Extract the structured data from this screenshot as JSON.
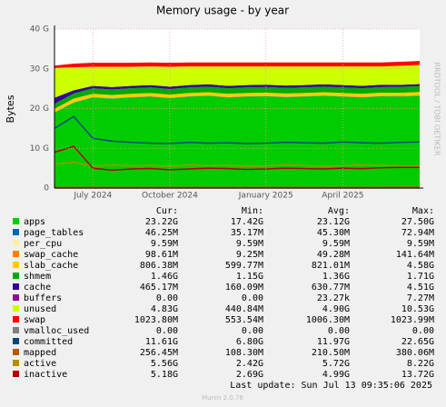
{
  "chart_data": {
    "type": "area",
    "title": "Memory usage - by year",
    "y_label": "Bytes",
    "categories": [
      null,
      null,
      "July 2024",
      null,
      null,
      null,
      "October 2024",
      null,
      null,
      null,
      null,
      "January 2025",
      null,
      null,
      null,
      "April 2025",
      null,
      null,
      null,
      null
    ],
    "ylim": [
      0,
      40
    ],
    "yticks": [
      {
        "value": 0,
        "label": "0"
      },
      {
        "value": 10,
        "label": "10 G"
      },
      {
        "value": 20,
        "label": "20 G"
      },
      {
        "value": 30,
        "label": "30 G"
      },
      {
        "value": 40,
        "label": "40 G"
      }
    ],
    "grid": true,
    "stat_headers": [
      "Cur:",
      "Min:",
      "Avg:",
      "Max:"
    ],
    "series": [
      {
        "name": "apps",
        "color": "#00cc00",
        "draw": "area",
        "cur": "23.22G",
        "min": "17.42G",
        "avg": "23.12G",
        "max": "27.50G",
        "values": [
          19,
          21.5,
          22.8,
          22.5,
          22.8,
          23,
          22.6,
          23,
          23.2,
          22.8,
          23,
          23.1,
          22.9,
          23,
          23.2,
          23,
          22.8,
          23.1,
          23,
          23.2
        ]
      },
      {
        "name": "page_tables",
        "color": "#0066b3",
        "draw": "area",
        "cur": "46.25M",
        "min": "35.17M",
        "avg": "45.30M",
        "max": "72.94M",
        "values": [
          0.05,
          0.05,
          0.05,
          0.05,
          0.05,
          0.05,
          0.05,
          0.05,
          0.05,
          0.05,
          0.05,
          0.05,
          0.05,
          0.05,
          0.05,
          0.05,
          0.05,
          0.05,
          0.05,
          0.05
        ]
      },
      {
        "name": "per_cpu",
        "color": "#ffeeaa",
        "draw": "area",
        "cur": "9.59M",
        "min": "9.59M",
        "avg": "9.59M",
        "max": "9.59M",
        "values": [
          0.01,
          0.01,
          0.01,
          0.01,
          0.01,
          0.01,
          0.01,
          0.01,
          0.01,
          0.01,
          0.01,
          0.01,
          0.01,
          0.01,
          0.01,
          0.01,
          0.01,
          0.01,
          0.01,
          0.01
        ]
      },
      {
        "name": "swap_cache",
        "color": "#ff8000",
        "draw": "area",
        "cur": "98.61M",
        "min": "9.25M",
        "avg": "49.28M",
        "max": "141.64M",
        "values": [
          0.05,
          0.05,
          0.05,
          0.05,
          0.05,
          0.05,
          0.05,
          0.05,
          0.05,
          0.05,
          0.05,
          0.05,
          0.05,
          0.05,
          0.05,
          0.05,
          0.05,
          0.05,
          0.1,
          0.1
        ]
      },
      {
        "name": "slab_cache",
        "color": "#ffcc00",
        "draw": "area",
        "cur": "806.38M",
        "min": "599.77M",
        "avg": "821.01M",
        "max": "4.58G",
        "values": [
          0.8,
          0.9,
          0.8,
          0.8,
          0.8,
          0.8,
          0.8,
          0.8,
          0.8,
          0.8,
          0.8,
          0.8,
          0.8,
          0.8,
          0.8,
          0.8,
          0.8,
          0.8,
          0.8,
          0.8
        ]
      },
      {
        "name": "shmem",
        "color": "#00aa00",
        "draw": "area",
        "cur": "1.46G",
        "min": "1.15G",
        "avg": "1.36G",
        "max": "1.71G",
        "values": [
          1.3,
          1.3,
          1.4,
          1.4,
          1.4,
          1.4,
          1.4,
          1.4,
          1.4,
          1.4,
          1.4,
          1.4,
          1.4,
          1.4,
          1.4,
          1.4,
          1.4,
          1.4,
          1.5,
          1.5
        ]
      },
      {
        "name": "cache",
        "color": "#330099",
        "draw": "area",
        "cur": "465.17M",
        "min": "160.09M",
        "avg": "630.77M",
        "max": "4.51G",
        "values": [
          1.5,
          0.8,
          0.6,
          0.6,
          0.6,
          0.6,
          0.6,
          0.6,
          0.6,
          0.6,
          0.6,
          0.6,
          0.6,
          0.6,
          0.6,
          0.6,
          0.6,
          0.6,
          0.5,
          0.5
        ]
      },
      {
        "name": "buffers",
        "color": "#990099",
        "draw": "area",
        "cur": "0.00",
        "min": "0.00",
        "avg": "23.27k",
        "max": "7.27M",
        "values": [
          0,
          0,
          0,
          0,
          0,
          0,
          0,
          0,
          0,
          0,
          0,
          0,
          0,
          0,
          0,
          0,
          0,
          0,
          0,
          0
        ]
      },
      {
        "name": "unused",
        "color": "#ccff00",
        "draw": "area",
        "cur": "4.83G",
        "min": "440.84M",
        "avg": "4.90G",
        "max": "10.53G",
        "values": [
          7.5,
          5.8,
          4.8,
          5.1,
          4.8,
          4.7,
          5,
          4.7,
          4.5,
          4.9,
          4.7,
          4.6,
          4.8,
          4.7,
          4.5,
          4.7,
          4.9,
          4.6,
          4.8,
          4.8
        ]
      },
      {
        "name": "swap",
        "color": "#ff0000",
        "draw": "area",
        "cur": "1023.80M",
        "min": "553.54M",
        "avg": "1006.30M",
        "max": "1023.99M",
        "values": [
          0.6,
          0.9,
          1,
          1,
          1,
          1,
          1,
          1,
          1,
          1,
          1,
          1,
          1,
          1,
          1,
          1,
          1,
          1,
          1,
          1
        ]
      },
      {
        "name": "vmalloc_used",
        "color": "#808080",
        "draw": "line",
        "cur": "0.00",
        "min": "0.00",
        "avg": "0.00",
        "max": "0.00",
        "values": [
          0,
          0,
          0,
          0,
          0,
          0,
          0,
          0,
          0,
          0,
          0,
          0,
          0,
          0,
          0,
          0,
          0,
          0,
          0,
          0
        ]
      },
      {
        "name": "committed",
        "color": "#00487d",
        "draw": "line",
        "cur": "11.61G",
        "min": "6.80G",
        "avg": "11.97G",
        "max": "22.65G",
        "values": [
          15,
          18,
          12.5,
          11.8,
          11.5,
          11.3,
          11.2,
          11.5,
          11.3,
          11.4,
          11.2,
          11.3,
          11.5,
          11.4,
          11.3,
          11.6,
          11.4,
          11.3,
          11.5,
          11.6
        ]
      },
      {
        "name": "mapped",
        "color": "#b35a00",
        "draw": "line",
        "cur": "256.45M",
        "min": "108.30M",
        "avg": "210.50M",
        "max": "380.06M",
        "values": [
          0.2,
          0.2,
          0.2,
          0.2,
          0.2,
          0.2,
          0.2,
          0.2,
          0.2,
          0.2,
          0.2,
          0.2,
          0.2,
          0.2,
          0.2,
          0.2,
          0.2,
          0.2,
          0.25,
          0.25
        ]
      },
      {
        "name": "active",
        "color": "#b38f00",
        "draw": "line",
        "cur": "5.56G",
        "min": "2.42G",
        "avg": "5.72G",
        "max": "8.22G",
        "values": [
          6,
          6.5,
          5.5,
          5.8,
          5.6,
          5.7,
          5.5,
          5.8,
          5.6,
          5.7,
          5.5,
          5.6,
          5.8,
          5.7,
          5.5,
          5.6,
          5.8,
          5.7,
          5.6,
          5.6
        ]
      },
      {
        "name": "inactive",
        "color": "#b30000",
        "draw": "line",
        "cur": "5.18G",
        "min": "2.69G",
        "avg": "4.99G",
        "max": "13.72G",
        "values": [
          9,
          10.5,
          5,
          4.5,
          4.8,
          4.9,
          4.6,
          4.8,
          5,
          4.9,
          4.7,
          4.8,
          5,
          4.9,
          4.8,
          5,
          4.9,
          5.1,
          5.2,
          5.2
        ]
      }
    ],
    "last_update": "Last update: Sun Jul 13 09:35:06 2025",
    "version": "Munin 2.0.76",
    "watermark": "RRDTOOL / TOBI OETIKER"
  }
}
